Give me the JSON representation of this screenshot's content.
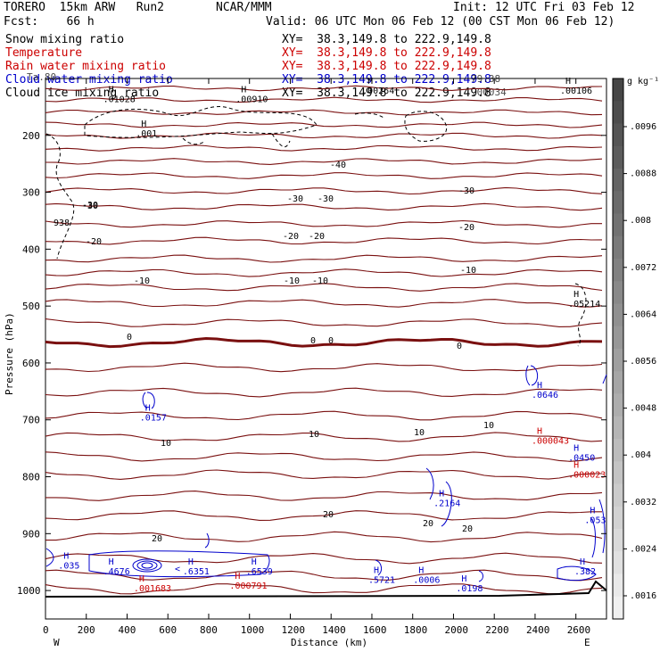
{
  "header": {
    "model": "TORERO  15km ARW   Run2",
    "center": "NCAR/MMM",
    "init": "Init: 12 UTC Fri 03 Feb 12",
    "fcst": "Fcst:    66 h",
    "valid": "Valid: 06 UTC Mon 06 Feb 12 (00 CST Mon 06 Feb 12)",
    "fields": [
      {
        "name": "Snow mixing ratio",
        "xy": "XY=  38.3,149.8 to 222.9,149.8",
        "color": "#000000"
      },
      {
        "name": "Temperature",
        "xy": "XY=  38.3,149.8 to 222.9,149.8",
        "color": "#cc0000"
      },
      {
        "name": "Rain water mixing ratio",
        "xy": "XY=  38.3,149.8 to 222.9,149.8",
        "color": "#cc0000"
      },
      {
        "name": "Cloud water mixing ratio",
        "xy": "XY=  38.3,149.8 to 222.9,149.8",
        "color": "#0000cc"
      },
      {
        "name": "Cloud ice mixing ratio",
        "xy": "XY=  38.3,149.8 to 222.9,149.8",
        "color": "#000000"
      }
    ],
    "overlap_text": [
      "Ta.80",
      "79.38",
      ".00034"
    ]
  },
  "chart_data": {
    "type": "cross-section contour",
    "xlabel": "Distance (km)",
    "ylabel": "Pressure (hPa)",
    "xlim": [
      0,
      2750
    ],
    "ylim": [
      1050,
      100
    ],
    "x_ticks": [
      0,
      200,
      400,
      600,
      800,
      1000,
      1200,
      1400,
      1600,
      1800,
      2000,
      2200,
      2400,
      2600
    ],
    "y_ticks": [
      200,
      300,
      400,
      500,
      600,
      700,
      800,
      900,
      1000
    ],
    "endpoints": {
      "left": "W",
      "right": "E"
    },
    "colorbar": {
      "unit": "g kg⁻¹",
      "ticks": [
        ".0096",
        ".0088",
        ".008",
        ".0072",
        ".0064",
        ".0056",
        ".0048",
        ".004",
        ".0032",
        ".0024",
        ".0016"
      ]
    },
    "temperature_labels": [
      "-40",
      "-30",
      "-30",
      "-30",
      "-30",
      "-20",
      "-20",
      "-20",
      "-20",
      "-10",
      "-10",
      "-10",
      "-10",
      "0",
      "0",
      "0",
      "0",
      "10",
      "10",
      "10",
      "10",
      "20",
      "20",
      "20",
      "20",
      "-30",
      "938"
    ],
    "maxima": [
      {
        "x": 300,
        "p": 140,
        "label": ".01028",
        "color": "#000000"
      },
      {
        "x": 950,
        "p": 140,
        "label": ".00910",
        "color": "#000000"
      },
      {
        "x": 1570,
        "p": 125,
        "label": ".00264",
        "color": "#000000"
      },
      {
        "x": 2540,
        "p": 125,
        "label": ".00106",
        "color": "#000000"
      },
      {
        "x": 2580,
        "p": 500,
        "label": ".05214",
        "color": "#000000"
      },
      {
        "x": 480,
        "p": 700,
        "label": ".0157",
        "color": "#0000cc"
      },
      {
        "x": 2400,
        "p": 660,
        "label": ".0646",
        "color": "#0000cc"
      },
      {
        "x": 2400,
        "p": 740,
        "label": ".000043",
        "color": "#cc0000"
      },
      {
        "x": 2580,
        "p": 770,
        "label": ".0450",
        "color": "#0000cc"
      },
      {
        "x": 2580,
        "p": 800,
        "label": ".000023",
        "color": "#cc0000"
      },
      {
        "x": 1920,
        "p": 850,
        "label": ".2164",
        "color": "#0000cc"
      },
      {
        "x": 2660,
        "p": 880,
        "label": ".053",
        "color": "#0000cc"
      },
      {
        "x": 300,
        "p": 970,
        "label": ".4676",
        "color": "#0000cc"
      },
      {
        "x": 690,
        "p": 970,
        "label": ".6351",
        "color": "#0000cc"
      },
      {
        "x": 1000,
        "p": 970,
        "label": ".6539",
        "color": "#0000cc"
      },
      {
        "x": 450,
        "p": 1000,
        "label": ".001683",
        "color": "#cc0000"
      },
      {
        "x": 920,
        "p": 995,
        "label": ".000791",
        "color": "#cc0000"
      },
      {
        "x": 1600,
        "p": 985,
        "label": ".5721",
        "color": "#0000cc"
      },
      {
        "x": 1820,
        "p": 985,
        "label": ".0006",
        "color": "#0000cc"
      },
      {
        "x": 2030,
        "p": 1000,
        "label": ".0198",
        "color": "#0000cc"
      },
      {
        "x": 2610,
        "p": 970,
        "label": ".382",
        "color": "#0000cc"
      },
      {
        "x": 80,
        "p": 960,
        "label": ".035",
        "color": "#0000cc"
      },
      {
        "x": 460,
        "p": 200,
        "label": ".001",
        "color": "#000000"
      }
    ]
  },
  "text": {
    "extra_temp_label": "-30",
    "low_value": "938",
    "snow_val_1": ".01028",
    "snow_val_2": ".00910",
    "snow_val_3": ".00264",
    "snow_val_4": ".00106",
    "snow_val_5": ".05214",
    "small_001": ".001",
    "cw_1": ".0157",
    "cw_2": ".0646",
    "rw_1": ".000043",
    "cw_3": ".0450",
    "rw_2": ".000023",
    "cw_4": ".2164",
    "cw_5": ".053",
    "cw_6": ".4676",
    "cw_7": ".6351",
    "cw_8": ".6539",
    "rw_3": ".001683",
    "rw_4": ".000791",
    "cw_9": ".5721",
    "cw_10": ".0006",
    "cw_11": ".0198",
    "cw_12": ".382",
    "cw_13": ".035",
    "h": "H",
    "lt": "<"
  }
}
